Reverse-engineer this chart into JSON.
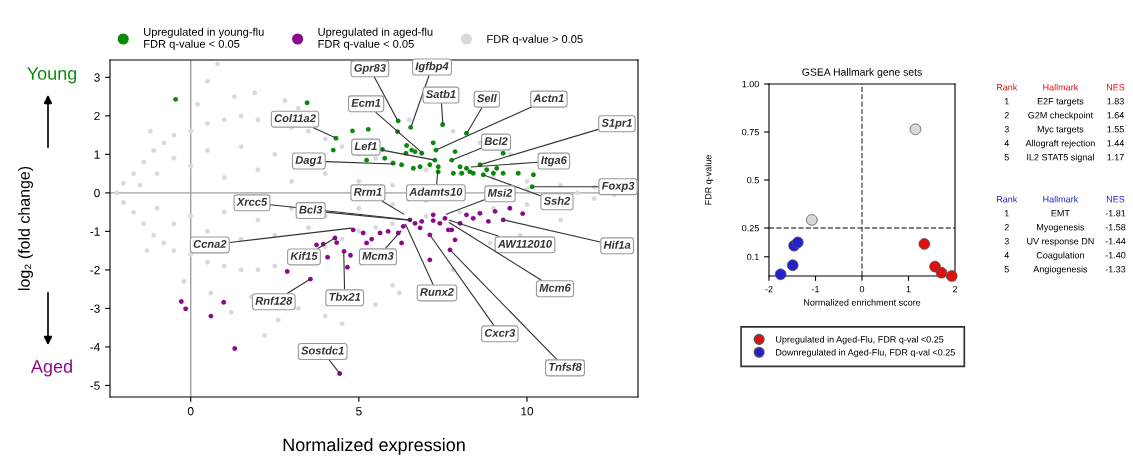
{
  "chart_data": [
    {
      "type": "scatter",
      "xlabel": "Normalized expression",
      "ylabel": "log₂ (fold change)",
      "xlim": [
        -2.4,
        13.3
      ],
      "ylim": [
        -5.3,
        3.45
      ],
      "xticks": [
        0,
        5,
        10
      ],
      "yticks": [
        -5,
        -4,
        -3,
        -2,
        -1,
        0,
        1,
        2,
        3
      ],
      "legend": "top",
      "marker": "circle",
      "ref_lines": [
        {
          "axis": "x",
          "value": 0,
          "color": "#a0a0a0"
        },
        {
          "axis": "y",
          "value": 0,
          "color": "#a0a0a0"
        }
      ],
      "series": [
        {
          "name": "Upregulated in young-flu\nFDR q-value < 0.05",
          "color": "#0a8a0a",
          "x": [
            -0.45,
            3.46,
            4.81,
            5.28,
            6.17,
            6.15,
            6.54,
            7.49,
            8.2,
            7.21,
            7.29,
            6.42,
            6.57,
            6.67,
            6.87,
            6.4,
            5.7,
            5.77,
            5.23,
            6.02,
            6.27,
            6.62,
            6.82,
            7.11,
            7.26,
            7.36,
            7.36,
            7.76,
            7.86,
            8.01,
            8.2,
            8.3,
            8.6,
            8.7,
            8.8,
            9.1,
            9.29,
            9.29,
            9.0,
            9.74,
            10.19,
            7.81,
            8.06,
            8.4,
            4.24,
            4.32,
            10.15
          ],
          "values": [
            2.43,
            2.34,
            1.61,
            1.65,
            1.87,
            1.59,
            1.7,
            1.77,
            1.55,
            1.3,
            1.11,
            1.23,
            1.11,
            1.07,
            1.03,
            1.03,
            1.13,
            0.9,
            0.85,
            0.77,
            0.73,
            0.64,
            0.68,
            0.73,
            0.85,
            0.68,
            0.55,
            0.85,
            1.07,
            0.68,
            0.64,
            0.55,
            0.73,
            0.47,
            0.6,
            0.64,
            1.03,
            0.51,
            0.51,
            0.51,
            0.47,
            0.51,
            0.51,
            0.51,
            1.11,
            1.42,
            0.16
          ]
        },
        {
          "name": "Upregulated in aged-flu\nFDR q-value < 0.05",
          "color": "#8b0a8b",
          "x": [
            -0.28,
            -0.15,
            0.6,
            0.98,
            1.31,
            2.87,
            3.56,
            3.74,
            3.94,
            4.07,
            4.29,
            4.34,
            4.56,
            4.66,
            4.75,
            4.83,
            5.13,
            5.23,
            5.38,
            5.63,
            5.87,
            6.17,
            6.27,
            6.32,
            6.52,
            6.67,
            6.87,
            7.11,
            7.11,
            7.21,
            7.41,
            7.56,
            7.66,
            7.76,
            7.71,
            7.86,
            8.2,
            8.4,
            8.6,
            8.85,
            9.05,
            9.29,
            9.49,
            9.87,
            8.01,
            4.43,
            7.21,
            6.82
          ],
          "values": [
            -2.82,
            -3.01,
            -3.2,
            -2.84,
            -4.04,
            -2.04,
            -2.24,
            -1.35,
            -1.33,
            -1.67,
            -1.17,
            -1.29,
            -1.52,
            -1.93,
            -1.62,
            -0.96,
            -1.04,
            -1.3,
            -1.2,
            -1.04,
            -1.0,
            -1.04,
            -1.3,
            -0.87,
            -0.7,
            -0.79,
            -0.74,
            -1.09,
            -1.74,
            -0.57,
            -0.79,
            -0.66,
            -0.96,
            -0.96,
            -1.48,
            -1.22,
            -0.57,
            -0.66,
            -0.53,
            -0.74,
            -0.48,
            -0.7,
            -0.4,
            -0.54,
            -0.79,
            -4.69,
            -0.72,
            -0.91
          ]
        },
        {
          "name": "FDR q-value > 0.05",
          "color": "#d9d9d9",
          "x": [
            -2.2,
            -2.0,
            -2.0,
            -1.7,
            -1.7,
            -1.4,
            -1.4,
            -1.1,
            -1.1,
            -0.8,
            -0.8,
            -0.5,
            -0.5,
            0,
            0,
            0.5,
            0.5,
            1,
            1,
            1.5,
            1.5,
            2,
            2,
            2.5,
            3,
            3.5,
            4,
            4,
            4.5,
            4.5,
            5,
            5,
            5.5,
            5.5,
            6,
            6,
            7,
            7,
            8,
            8,
            9,
            9,
            10,
            10,
            11,
            12,
            12,
            12.6,
            -1.5,
            -1,
            -1,
            -0.5,
            -0.5,
            0,
            0,
            0.5,
            0.5,
            1,
            1,
            1.5,
            1.5,
            2,
            2,
            2.5,
            2.5,
            3,
            3,
            3.5,
            4,
            4,
            5,
            5,
            6,
            6,
            7,
            10,
            11.5,
            0.8,
            0.5,
            1.9,
            1.3,
            0.2,
            2.8,
            3.2,
            -0.2,
            0.6,
            1.8,
            2.6,
            3.2,
            4.0,
            4.5,
            5.5,
            6.2,
            6.5,
            7.8,
            8.6,
            9.5,
            11,
            9.8,
            8.9,
            7.5,
            7.8,
            6.0,
            1.2,
            -1.2,
            -1.3,
            2.2
          ],
          "values": [
            0,
            0.25,
            -0.25,
            0.5,
            -0.5,
            0.8,
            -0.8,
            1.1,
            -1.1,
            1.3,
            -1.3,
            1.5,
            -1.5,
            1.6,
            -1.6,
            1.8,
            -1.8,
            1.9,
            -1.9,
            2.0,
            -2.0,
            1.9,
            -2.0,
            -1.9,
            1.7,
            1.6,
            1.4,
            -1.4,
            1.2,
            -1.2,
            1.0,
            -1.0,
            0.9,
            -0.9,
            0.8,
            -0.8,
            0.6,
            -0.6,
            0.5,
            -0.5,
            0.4,
            -0.4,
            0.3,
            -0.3,
            0.2,
            0.15,
            -0.15,
            -0.05,
            0.2,
            0.5,
            -0.4,
            0.9,
            -0.8,
            0.7,
            -0.6,
            1.1,
            -1.0,
            0.4,
            -0.5,
            1.2,
            -1.2,
            0.6,
            -0.7,
            1.0,
            -1.1,
            0.3,
            -0.4,
            -0.9,
            0.5,
            -0.6,
            0.3,
            -0.4,
            0.2,
            -0.3,
            -0.2,
            0.1,
            0,
            3.35,
            2.9,
            2.6,
            2.5,
            2.3,
            2.4,
            2.2,
            -2.3,
            -2.6,
            -2.7,
            -3.3,
            -3.0,
            -3.2,
            -3.4,
            -2.9,
            -2.6,
            1.9,
            1.6,
            1.3,
            1.0,
            -0.7,
            -1.1,
            -1.3,
            1.8,
            -2.0,
            -2.4,
            -3.1,
            1.6,
            -1.5,
            -3.7
          ]
        }
      ],
      "annotations": [
        "Young",
        "Aged",
        {
          "text": "Gpr83",
          "x": 6.16,
          "y": 1.87
        },
        {
          "text": "Igfbp4",
          "x": 6.55,
          "y": 1.71
        },
        {
          "text": "Satb1",
          "x": 7.5,
          "y": 1.76
        },
        {
          "text": "Sell",
          "x": 8.21,
          "y": 1.55
        },
        {
          "text": "Actn1",
          "x": 7.29,
          "y": 1.11
        },
        {
          "text": "Ecm1",
          "x": 6.88,
          "y": 1.04
        },
        {
          "text": "Col11a2",
          "x": 4.32,
          "y": 1.42
        },
        {
          "text": "Lef1",
          "x": 7.26,
          "y": 0.85
        },
        {
          "text": "Bcl2",
          "x": 7.77,
          "y": 0.85
        },
        {
          "text": "Dag1",
          "x": 6.07,
          "y": 0.75
        },
        {
          "text": "S1pr1",
          "x": 8.6,
          "y": 0.73
        },
        {
          "text": "Itga6",
          "x": 8.3,
          "y": 0.67
        },
        {
          "text": "Adamts10",
          "x": 7.35,
          "y": 0.6
        },
        {
          "text": "Ssh2",
          "x": 8.69,
          "y": 0.47
        },
        {
          "text": "Foxp3",
          "x": 10.15,
          "y": 0.16
        },
        {
          "text": "Rrm1",
          "x": 6.37,
          "y": -0.57
        },
        {
          "text": "Msi2",
          "x": 7.56,
          "y": -0.57
        },
        {
          "text": "Xrcc5",
          "x": 6.52,
          "y": -0.7
        },
        {
          "text": "Bcl3",
          "x": 6.6,
          "y": -0.72
        },
        {
          "text": "Ccna2",
          "x": 4.82,
          "y": -0.91
        },
        {
          "text": "Kif15",
          "x": 4.29,
          "y": -1.17
        },
        {
          "text": "Mcm3",
          "x": 6.28,
          "y": -0.96
        },
        {
          "text": "Tbx21",
          "x": 4.55,
          "y": -1.53
        },
        {
          "text": "Rnf128",
          "x": 3.57,
          "y": -2.23
        },
        {
          "text": "Runx2",
          "x": 6.37,
          "y": -0.78
        },
        {
          "text": "AW112010",
          "x": 7.65,
          "y": -0.7
        },
        {
          "text": "Mcm6",
          "x": 7.65,
          "y": -0.75
        },
        {
          "text": "Cxcr3",
          "x": 7.11,
          "y": -1.09
        },
        {
          "text": "Tnfsf8",
          "x": 7.71,
          "y": -1.48
        },
        {
          "text": "Hif1a",
          "x": 9.29,
          "y": -0.7
        },
        {
          "text": "Sostdc1",
          "x": 4.43,
          "y": -4.69
        }
      ]
    },
    {
      "type": "scatter",
      "title": "GSEA Hallmark gene sets",
      "xlabel": "Normalized enrichment score",
      "ylabel": "FDR q-value",
      "xlim": [
        -2,
        2
      ],
      "ylim": [
        0,
        1
      ],
      "xticks": [
        -2,
        -1,
        0,
        1,
        2
      ],
      "yticks": [
        0.1,
        0.25,
        0.5,
        0.75,
        {
          "value": 1,
          "label": "1.00"
        }
      ],
      "legend": "bottom",
      "marker": "circle",
      "ref_lines": [
        {
          "axis": "x",
          "value": 0,
          "color": "#555555",
          "line_style": "dashed"
        },
        {
          "axis": "y",
          "value": 0.25,
          "color": "#555555",
          "line_style": "dashed"
        }
      ],
      "series": [
        {
          "name": "Upregulated in Aged-Flu, FDR q-val <0.25",
          "color": "#dd1111",
          "x": [
            1.34,
            1.57,
            1.71,
            1.93
          ],
          "values": [
            0.167,
            0.049,
            0.017,
            0.0
          ]
        },
        {
          "name": "Downregulated in Aged-Flu, FDR q-val <0.25",
          "color": "#2222cc",
          "x": [
            -1.75,
            -1.49,
            -1.46,
            -1.38
          ],
          "values": [
            0.009,
            0.056,
            0.158,
            0.175
          ]
        },
        {
          "color": "#d9d9d9",
          "x": [
            1.15,
            -1.08
          ],
          "values": [
            0.764,
            0.292
          ]
        }
      ],
      "annotations": [
        "Rank",
        "Hallmark",
        "NES",
        "1",
        "E2F targets",
        "1.83",
        "2",
        "G2M checkpoint",
        "1.64",
        "3",
        "Myc targets",
        "1.55",
        "4",
        "Allograft rejection",
        "1.44",
        "5",
        "IL2 STAT5 signal",
        "1.17",
        "Rank",
        "Hallmark",
        "NES",
        "1",
        "EMT",
        "-1.81",
        "2",
        "Myogenesis",
        "-1.58",
        "3",
        "UV response DN",
        "-1.44",
        "4",
        "Coagulation",
        "-1.40",
        "5",
        "Angiogenesis",
        "-1.33"
      ]
    }
  ]
}
